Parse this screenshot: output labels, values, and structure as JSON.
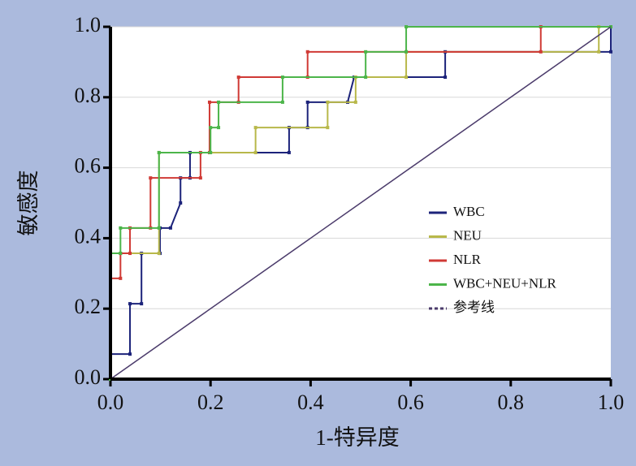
{
  "chart_data": {
    "type": "line",
    "xlabel": "1-特异度",
    "ylabel": "敏感度",
    "xlim": [
      0,
      1
    ],
    "ylim": [
      0,
      1
    ],
    "xticks": [
      {
        "value": 0,
        "label": "0.0"
      },
      {
        "value": 0.2,
        "label": "0.2"
      },
      {
        "value": 0.4,
        "label": "0.4"
      },
      {
        "value": 0.6,
        "label": "0.6"
      },
      {
        "value": 0.8,
        "label": "0.8"
      },
      {
        "value": 1,
        "label": "1.0"
      }
    ],
    "yticks": [
      {
        "value": 0,
        "label": "0.0"
      },
      {
        "value": 0.2,
        "label": "0.2"
      },
      {
        "value": 0.4,
        "label": "0.4"
      },
      {
        "value": 0.6,
        "label": "0.6"
      },
      {
        "value": 0.8,
        "label": "0.8"
      },
      {
        "value": 1,
        "label": "1.0"
      }
    ],
    "grid": true,
    "legend": "right",
    "series": [
      {
        "name": "WBC",
        "color": "#1c237a",
        "x": [
          0,
          0,
          0.039,
          0.039,
          0.062,
          0.062,
          0.099,
          0.099,
          0.12,
          0.14,
          0.14,
          0.159,
          0.159,
          0.357,
          0.357,
          0.394,
          0.394,
          0.474,
          0.487,
          0.669,
          0.669,
          1,
          1
        ],
        "values": [
          0,
          0.071,
          0.071,
          0.214,
          0.214,
          0.357,
          0.357,
          0.429,
          0.429,
          0.5,
          0.571,
          0.571,
          0.643,
          0.643,
          0.714,
          0.714,
          0.786,
          0.786,
          0.857,
          0.857,
          0.929,
          0.929,
          1
        ]
      },
      {
        "name": "NEU",
        "color": "#b8b84a",
        "x": [
          0,
          0,
          0.097,
          0.097,
          0.29,
          0.29,
          0.434,
          0.434,
          0.49,
          0.49,
          0.591,
          0.591,
          0.976,
          0.976,
          1
        ],
        "values": [
          0,
          0.357,
          0.357,
          0.643,
          0.643,
          0.714,
          0.714,
          0.786,
          0.786,
          0.857,
          0.857,
          0.929,
          0.929,
          1,
          1
        ]
      },
      {
        "name": "NLR",
        "color": "#d03a35",
        "x": [
          0,
          0,
          0.02,
          0.02,
          0.039,
          0.039,
          0.08,
          0.08,
          0.18,
          0.18,
          0.198,
          0.198,
          0.256,
          0.256,
          0.394,
          0.394,
          0.86,
          0.86,
          1
        ],
        "values": [
          0,
          0.286,
          0.286,
          0.357,
          0.357,
          0.429,
          0.429,
          0.571,
          0.571,
          0.643,
          0.643,
          0.786,
          0.786,
          0.857,
          0.857,
          0.929,
          0.929,
          1,
          1
        ]
      },
      {
        "name": "WBC+NEU+NLR",
        "color": "#4cb54a",
        "x": [
          0,
          0,
          0.02,
          0.02,
          0.097,
          0.097,
          0.2,
          0.2,
          0.216,
          0.216,
          0.344,
          0.344,
          0.51,
          0.51,
          0.591,
          0.591,
          1
        ],
        "values": [
          0,
          0.357,
          0.357,
          0.429,
          0.429,
          0.643,
          0.643,
          0.714,
          0.714,
          0.786,
          0.786,
          0.857,
          0.857,
          0.929,
          0.929,
          1,
          1
        ]
      },
      {
        "name": "参考线",
        "color": "#4b3b6b",
        "dash": true,
        "x": [
          0,
          1
        ],
        "values": [
          0,
          1
        ]
      }
    ]
  }
}
